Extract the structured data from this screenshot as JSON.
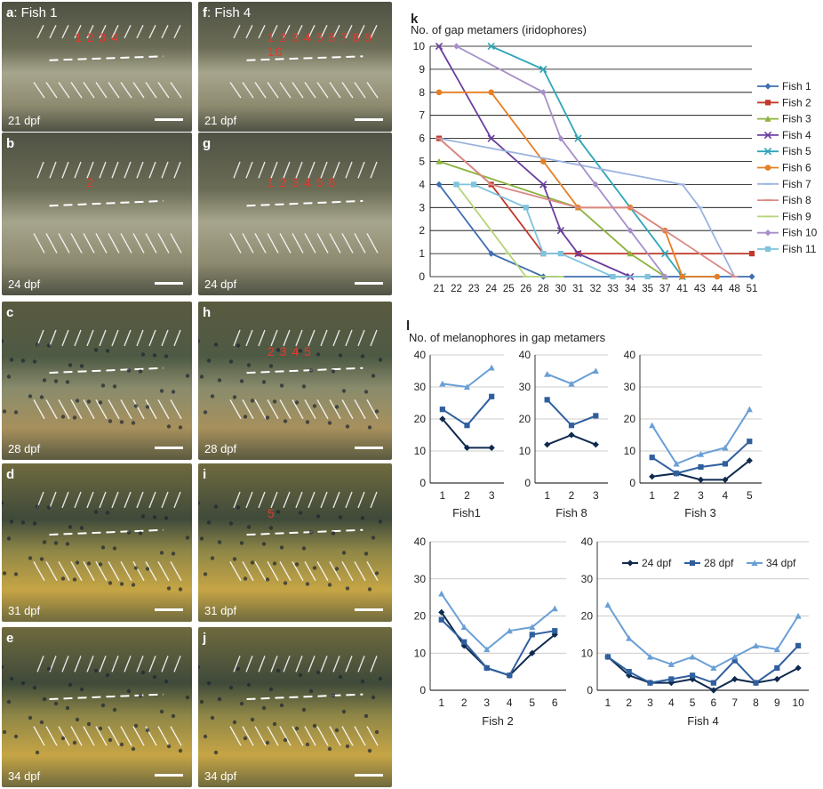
{
  "photo_panels": [
    {
      "letter": "a",
      "suffix": ": Fish 1",
      "dpf": "21 dpf",
      "numbers": "1 2 3 4",
      "tone": "pale"
    },
    {
      "letter": "b",
      "suffix": "",
      "dpf": "24 dpf",
      "numbers": "2",
      "tone": "pale"
    },
    {
      "letter": "c",
      "suffix": "",
      "dpf": "28 dpf",
      "numbers": "",
      "tone": "mid"
    },
    {
      "letter": "d",
      "suffix": "",
      "dpf": "31 dpf",
      "numbers": "",
      "tone": "gold"
    },
    {
      "letter": "e",
      "suffix": "",
      "dpf": "34 dpf",
      "numbers": "",
      "tone": "gold"
    },
    {
      "letter": "f",
      "suffix": ": Fish 4",
      "dpf": "21 dpf",
      "numbers": "1 2 3 4 5 6 7 8 9 10",
      "tone": "pale"
    },
    {
      "letter": "g",
      "suffix": "",
      "dpf": "24 dpf",
      "numbers": "1 2 3 4 5 6",
      "tone": "pale"
    },
    {
      "letter": "h",
      "suffix": "",
      "dpf": "28 dpf",
      "numbers": "2 3 4 5",
      "tone": "mid"
    },
    {
      "letter": "i",
      "suffix": "",
      "dpf": "31 dpf",
      "numbers": "5",
      "tone": "gold"
    },
    {
      "letter": "j",
      "suffix": "",
      "dpf": "34 dpf",
      "numbers": "",
      "tone": "gold"
    }
  ],
  "colors": {
    "label_red": "#e8372e",
    "arrow_white": "#ffffff",
    "arrow_red": "#e8372e"
  },
  "chart_data": [
    {
      "panel": "k",
      "type": "line",
      "title": "No. of gap metamers (iridophores)",
      "x_categories": [
        "21",
        "22",
        "23",
        "24",
        "25",
        "26",
        "28",
        "30",
        "31",
        "32",
        "33",
        "34",
        "35",
        "37",
        "41",
        "43",
        "44",
        "48",
        "51"
      ],
      "ylim": [
        0,
        10
      ],
      "yticks": [
        0,
        1,
        2,
        3,
        4,
        5,
        6,
        7,
        8,
        9,
        10
      ],
      "grid": "horizontal",
      "legend_position": "right",
      "series": [
        {
          "name": "Fish 1",
          "color": "#3f6fb1",
          "marker": "diamond",
          "points": [
            [
              "21",
              4
            ],
            [
              "24",
              1
            ],
            [
              "28",
              0
            ],
            [
              "51",
              0
            ]
          ]
        },
        {
          "name": "Fish 2",
          "color": "#c0392b",
          "marker": "square",
          "points": [
            [
              "21",
              6
            ],
            [
              "24",
              4
            ],
            [
              "28",
              1
            ],
            [
              "31",
              1
            ],
            [
              "51",
              1
            ]
          ]
        },
        {
          "name": "Fish 3",
          "color": "#8db33f",
          "marker": "triangle",
          "points": [
            [
              "21",
              5
            ],
            [
              "31",
              3
            ],
            [
              "34",
              1
            ],
            [
              "37",
              0
            ]
          ]
        },
        {
          "name": "Fish 4",
          "color": "#6b3fa0",
          "marker": "x",
          "points": [
            [
              "21",
              10
            ],
            [
              "24",
              6
            ],
            [
              "28",
              4
            ],
            [
              "30",
              2
            ],
            [
              "31",
              1
            ],
            [
              "34",
              0
            ]
          ]
        },
        {
          "name": "Fish 5",
          "color": "#2ea6b8",
          "marker": "x",
          "points": [
            [
              "24",
              10
            ],
            [
              "28",
              9
            ],
            [
              "31",
              6
            ],
            [
              "37",
              1
            ],
            [
              "41",
              0
            ]
          ]
        },
        {
          "name": "Fish 6",
          "color": "#e67e22",
          "marker": "circle",
          "points": [
            [
              "21",
              8
            ],
            [
              "24",
              8
            ],
            [
              "28",
              5
            ],
            [
              "31",
              3
            ],
            [
              "34",
              3
            ],
            [
              "37",
              2
            ],
            [
              "41",
              0
            ],
            [
              "44",
              0
            ]
          ]
        },
        {
          "name": "Fish 7",
          "color": "#9bb3de",
          "marker": "dash",
          "points": [
            [
              "21",
              6
            ],
            [
              "41",
              4
            ],
            [
              "43",
              3
            ],
            [
              "48",
              0
            ]
          ]
        },
        {
          "name": "Fish 8",
          "color": "#d98a86",
          "marker": "dash",
          "points": [
            [
              "21",
              6
            ],
            [
              "24",
              4
            ],
            [
              "31",
              3
            ],
            [
              "34",
              3
            ],
            [
              "37",
              2
            ],
            [
              "48",
              0
            ]
          ]
        },
        {
          "name": "Fish 9",
          "color": "#b6d47a",
          "marker": "dash",
          "points": [
            [
              "22",
              4
            ],
            [
              "25",
              1
            ],
            [
              "26",
              0
            ],
            [
              "30",
              0
            ]
          ]
        },
        {
          "name": "Fish 10",
          "color": "#a68fc9",
          "marker": "diamond",
          "points": [
            [
              "22",
              10
            ],
            [
              "28",
              8
            ],
            [
              "30",
              6
            ],
            [
              "32",
              4
            ],
            [
              "34",
              2
            ],
            [
              "37",
              0
            ]
          ]
        },
        {
          "name": "Fish 11",
          "color": "#7fc3dc",
          "marker": "square",
          "points": [
            [
              "22",
              4
            ],
            [
              "23",
              4
            ],
            [
              "26",
              3
            ],
            [
              "28",
              1
            ],
            [
              "30",
              1
            ],
            [
              "33",
              0
            ],
            [
              "35",
              0
            ]
          ]
        }
      ]
    },
    {
      "panel": "l",
      "type": "line",
      "title": "No. of melanophores in gap metamers",
      "legend": [
        "24 dpf",
        "28 dpf",
        "34 dpf"
      ],
      "legend_position": "top",
      "series_colors": [
        "#0f2a4f",
        "#2f5f9e",
        "#6a9fd6"
      ],
      "series_markers": [
        "diamond",
        "square",
        "triangle"
      ],
      "ylim": [
        0,
        40
      ],
      "yticks": [
        0,
        10,
        20,
        30,
        40
      ],
      "grid": "horizontal",
      "subplots": [
        {
          "name": "Fish1",
          "categories": [
            "1",
            "2",
            "3"
          ],
          "series": [
            {
              "values": [
                20,
                11,
                11
              ]
            },
            {
              "values": [
                23,
                18,
                27
              ]
            },
            {
              "values": [
                31,
                30,
                36
              ]
            }
          ]
        },
        {
          "name": "Fish 8",
          "categories": [
            "1",
            "2",
            "3"
          ],
          "series": [
            {
              "values": [
                12,
                15,
                12
              ]
            },
            {
              "values": [
                26,
                18,
                21
              ]
            },
            {
              "values": [
                34,
                31,
                35
              ]
            }
          ]
        },
        {
          "name": "Fish 3",
          "categories": [
            "1",
            "2",
            "3",
            "4",
            "5"
          ],
          "series": [
            {
              "values": [
                2,
                3,
                1,
                1,
                7
              ]
            },
            {
              "values": [
                8,
                3,
                5,
                6,
                13
              ]
            },
            {
              "values": [
                18,
                6,
                9,
                11,
                23
              ]
            }
          ]
        },
        {
          "name": "Fish 2",
          "categories": [
            "1",
            "2",
            "3",
            "4",
            "5",
            "6"
          ],
          "series": [
            {
              "values": [
                21,
                12,
                6,
                4,
                10,
                15
              ]
            },
            {
              "values": [
                19,
                13,
                6,
                4,
                15,
                16
              ]
            },
            {
              "values": [
                26,
                17,
                11,
                16,
                17,
                22
              ]
            }
          ]
        },
        {
          "name": "Fish 4",
          "categories": [
            "1",
            "2",
            "3",
            "4",
            "5",
            "6",
            "7",
            "8",
            "9",
            "10"
          ],
          "series": [
            {
              "values": [
                9,
                4,
                2,
                2,
                3,
                0,
                3,
                2,
                3,
                6
              ]
            },
            {
              "values": [
                9,
                5,
                2,
                3,
                4,
                2,
                8,
                2,
                6,
                12
              ]
            },
            {
              "values": [
                23,
                14,
                9,
                7,
                9,
                6,
                9,
                12,
                11,
                20
              ]
            }
          ]
        }
      ]
    }
  ]
}
